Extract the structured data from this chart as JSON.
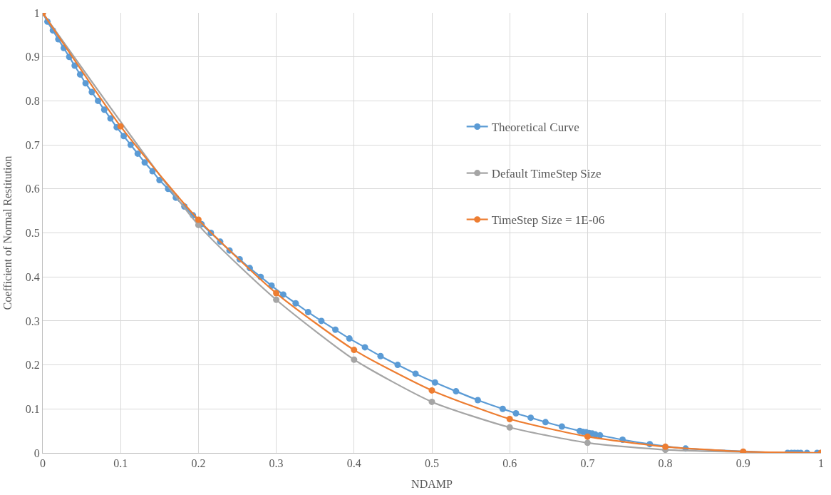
{
  "chart_data": {
    "type": "line",
    "xlabel": "NDAMP",
    "ylabel": "Coefficient of Normal Restitution",
    "xlim": [
      0,
      1
    ],
    "xticks": [
      0,
      0.1,
      0.2,
      0.3,
      0.4,
      0.5,
      0.6,
      0.7,
      0.8,
      0.9,
      1
    ],
    "ylim": [
      0,
      1
    ],
    "yticks": [
      0,
      0.1,
      0.2,
      0.3,
      0.4,
      0.5,
      0.6,
      0.7,
      0.8,
      0.9,
      1
    ],
    "grid": true,
    "legend": "right",
    "marker": "circle",
    "line_style": "solid",
    "series": [
      {
        "name": "Theoretical Curve",
        "color": "#5b9bd5",
        "x": [
          0,
          0.006,
          0.013,
          0.02,
          0.027,
          0.034,
          0.041,
          0.048,
          0.055,
          0.063,
          0.071,
          0.079,
          0.087,
          0.095,
          0.104,
          0.113,
          0.122,
          0.131,
          0.141,
          0.15,
          0.161,
          0.171,
          0.182,
          0.193,
          0.204,
          0.216,
          0.228,
          0.24,
          0.253,
          0.266,
          0.28,
          0.294,
          0.309,
          0.325,
          0.341,
          0.358,
          0.376,
          0.394,
          0.414,
          0.434,
          0.456,
          0.479,
          0.504,
          0.531,
          0.559,
          0.591,
          0.608,
          0.627,
          0.646,
          0.667,
          0.69,
          0.694,
          0.698,
          0.702,
          0.706,
          0.71,
          0.716,
          0.745,
          0.78,
          0.826,
          0.957,
          0.962,
          0.966,
          0.97,
          0.974,
          0.982,
          0.995
        ],
        "values": [
          1,
          0.98,
          0.96,
          0.94,
          0.92,
          0.9,
          0.88,
          0.86,
          0.84,
          0.82,
          0.8,
          0.78,
          0.76,
          0.74,
          0.72,
          0.7,
          0.68,
          0.66,
          0.64,
          0.62,
          0.6,
          0.58,
          0.56,
          0.54,
          0.52,
          0.5,
          0.48,
          0.46,
          0.44,
          0.42,
          0.4,
          0.38,
          0.36,
          0.34,
          0.32,
          0.3,
          0.28,
          0.26,
          0.24,
          0.22,
          0.2,
          0.18,
          0.16,
          0.14,
          0.12,
          0.1,
          0.09,
          0.08,
          0.07,
          0.06,
          0.05,
          0.048,
          0.047,
          0.045,
          0.044,
          0.042,
          0.04,
          0.03,
          0.02,
          0.01,
          0,
          0,
          0,
          0,
          0,
          0,
          0
        ]
      },
      {
        "name": "Default TimeStep Size",
        "color": "#a5a5a5",
        "x": [
          0,
          0.1,
          0.2,
          0.3,
          0.4,
          0.5,
          0.6,
          0.7,
          0.8,
          0.9,
          1
        ],
        "values": [
          1,
          null,
          0.518,
          0.348,
          0.212,
          0.116,
          0.058,
          0.023,
          0.007,
          0.002,
          0
        ]
      },
      {
        "name": "TimeStep Size = 1E-06",
        "color": "#ed7d31",
        "x": [
          0,
          0.1,
          0.2,
          0.3,
          0.4,
          0.5,
          0.6,
          0.7,
          0.8,
          0.9,
          1
        ],
        "values": [
          1,
          0.742,
          0.53,
          0.363,
          0.234,
          0.142,
          0.077,
          0.037,
          0.014,
          0.003,
          0
        ]
      }
    ]
  }
}
